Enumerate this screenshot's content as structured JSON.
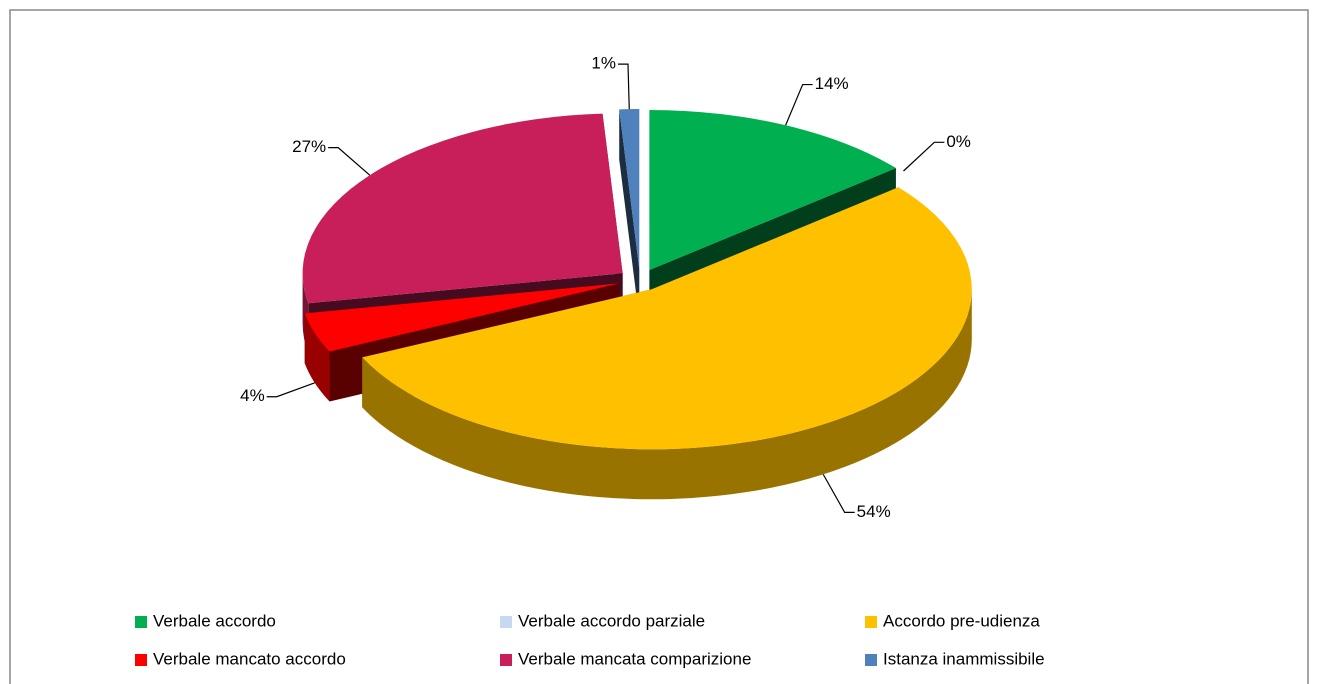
{
  "chart_data": {
    "type": "pie3d",
    "categories": [
      "Verbale accordo",
      "Verbale accordo parziale",
      "Accordo pre-udienza",
      "Verbale mancato accordo",
      "Verbale mancata comparizione",
      "Istanza inammissibile"
    ],
    "values": [
      14,
      0,
      54,
      4,
      27,
      1
    ],
    "value_labels": [
      "14%",
      "0%",
      "54%",
      "4%",
      "27%",
      "1%"
    ],
    "colors": [
      "#00b050",
      "#c6d9f1",
      "#ffc000",
      "#ff0000",
      "#c81e5a",
      "#4f81bd"
    ],
    "legend": "bottom"
  }
}
